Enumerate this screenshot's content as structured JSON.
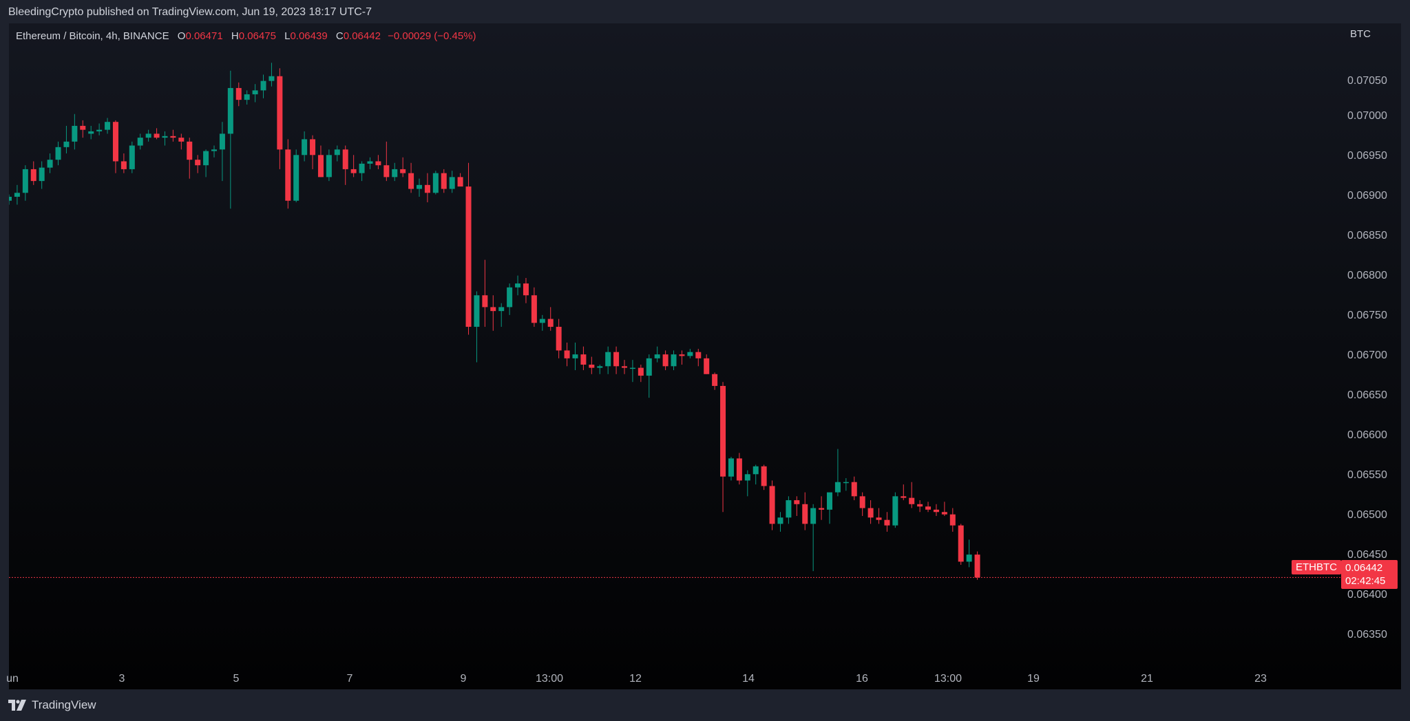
{
  "header": {
    "published": "BleedingCrypto published on TradingView.com, Jun 19, 2023 18:17 UTC-7"
  },
  "legend": {
    "instrument": "Ethereum / Bitcoin, 4h, BINANCE",
    "o_label": "O",
    "o_value": "0.06471",
    "h_label": "H",
    "h_value": "0.06475",
    "l_label": "L",
    "l_value": "0.06439",
    "c_label": "C",
    "c_value": "0.06442",
    "change": "−0.00029 (−0.45%)"
  },
  "axis": {
    "unit": "BTC"
  },
  "price_tag": {
    "symbol": "ETHBTC",
    "price": "0.06442",
    "countdown": "02:42:45"
  },
  "footer": {
    "brand": "TradingView"
  },
  "colors": {
    "up": "#089981",
    "down": "#f23645",
    "background": "#000000",
    "text": "#b2b5be"
  },
  "chart_data": {
    "type": "candlestick",
    "symbol": "ETHBTC",
    "timeframe": "4h",
    "ylim": [
      0.063,
      0.07145
    ],
    "y_ticks": [
      "0.06350",
      "0.06400",
      "0.06450",
      "0.06500",
      "0.06550",
      "0.06600",
      "0.06650",
      "0.06700",
      "0.06750",
      "0.06800",
      "0.06850",
      "0.06900",
      "0.06950",
      "0.07000",
      "0.07050"
    ],
    "x_ticks": [
      "un",
      "3",
      "5",
      "7",
      "9",
      "13:00",
      "12",
      "14",
      "16",
      "13:00",
      "19",
      "21",
      "23"
    ],
    "last_price": 0.06442,
    "ohlc": [
      [
        0.0692,
        0.06928,
        0.06915,
        0.06925
      ],
      [
        0.06925,
        0.0694,
        0.06915,
        0.0693
      ],
      [
        0.0693,
        0.06965,
        0.0692,
        0.0696
      ],
      [
        0.0696,
        0.0697,
        0.0694,
        0.06945
      ],
      [
        0.06945,
        0.0697,
        0.06935,
        0.06962
      ],
      [
        0.06962,
        0.0698,
        0.06955,
        0.06972
      ],
      [
        0.06972,
        0.06995,
        0.06965,
        0.06988
      ],
      [
        0.06988,
        0.07015,
        0.0698,
        0.06995
      ],
      [
        0.06995,
        0.0703,
        0.06985,
        0.07015
      ],
      [
        0.07015,
        0.07022,
        0.07,
        0.0701
      ],
      [
        0.07005,
        0.07015,
        0.06998,
        0.07008
      ],
      [
        0.07008,
        0.07018,
        0.07003,
        0.0701
      ],
      [
        0.0701,
        0.07025,
        0.07005,
        0.0702
      ],
      [
        0.0702,
        0.07022,
        0.06955,
        0.0697
      ],
      [
        0.0697,
        0.0698,
        0.06955,
        0.0696
      ],
      [
        0.0696,
        0.06995,
        0.06955,
        0.0699
      ],
      [
        0.0699,
        0.07005,
        0.06985,
        0.07
      ],
      [
        0.07,
        0.0701,
        0.06995,
        0.07005
      ],
      [
        0.07005,
        0.07012,
        0.06998,
        0.07
      ],
      [
        0.07,
        0.07008,
        0.0699,
        0.07002
      ],
      [
        0.07002,
        0.0701,
        0.06995,
        0.07
      ],
      [
        0.07,
        0.07005,
        0.06985,
        0.06995
      ],
      [
        0.06995,
        0.07,
        0.06948,
        0.06972
      ],
      [
        0.06972,
        0.06978,
        0.06955,
        0.06965
      ],
      [
        0.06965,
        0.06985,
        0.0695,
        0.06983
      ],
      [
        0.06983,
        0.0699,
        0.06975,
        0.06985
      ],
      [
        0.06985,
        0.0702,
        0.06945,
        0.07005
      ],
      [
        0.07005,
        0.07085,
        0.0691,
        0.07063
      ],
      [
        0.07063,
        0.0707,
        0.0704,
        0.07048
      ],
      [
        0.07048,
        0.0706,
        0.07042,
        0.07055
      ],
      [
        0.07055,
        0.07068,
        0.07045,
        0.0706
      ],
      [
        0.0706,
        0.0708,
        0.0705,
        0.07072
      ],
      [
        0.07072,
        0.07095,
        0.07065,
        0.07078
      ],
      [
        0.07078,
        0.07088,
        0.0696,
        0.06985
      ],
      [
        0.06985,
        0.06998,
        0.0691,
        0.0692
      ],
      [
        0.0692,
        0.06985,
        0.06918,
        0.06978
      ],
      [
        0.06978,
        0.07008,
        0.0697,
        0.06998
      ],
      [
        0.06998,
        0.07003,
        0.0696,
        0.06978
      ],
      [
        0.06978,
        0.0699,
        0.0695,
        0.0695
      ],
      [
        0.0695,
        0.06985,
        0.06945,
        0.06978
      ],
      [
        0.06978,
        0.0699,
        0.0697,
        0.06985
      ],
      [
        0.06985,
        0.0699,
        0.0694,
        0.0696
      ],
      [
        0.0696,
        0.06978,
        0.0695,
        0.06955
      ],
      [
        0.06955,
        0.0697,
        0.06945,
        0.06967
      ],
      [
        0.06967,
        0.06975,
        0.0696,
        0.0697
      ],
      [
        0.0697,
        0.06978,
        0.0696,
        0.06965
      ],
      [
        0.06965,
        0.06995,
        0.06945,
        0.0695
      ],
      [
        0.0695,
        0.06968,
        0.06945,
        0.0696
      ],
      [
        0.0696,
        0.06975,
        0.0695,
        0.06955
      ],
      [
        0.06955,
        0.06968,
        0.0693,
        0.06935
      ],
      [
        0.06935,
        0.06948,
        0.06925,
        0.0694
      ],
      [
        0.0694,
        0.06955,
        0.06918,
        0.0693
      ],
      [
        0.0693,
        0.06958,
        0.06928,
        0.06955
      ],
      [
        0.06955,
        0.0696,
        0.0693,
        0.06935
      ],
      [
        0.06935,
        0.06958,
        0.0693,
        0.0695
      ],
      [
        0.0695,
        0.06955,
        0.0694,
        0.06938
      ],
      [
        0.06938,
        0.06968,
        0.0675,
        0.0676
      ],
      [
        0.0676,
        0.06805,
        0.06715,
        0.068
      ],
      [
        0.068,
        0.06845,
        0.0676,
        0.06785
      ],
      [
        0.06785,
        0.068,
        0.06755,
        0.0678
      ],
      [
        0.0678,
        0.0679,
        0.0676,
        0.06785
      ],
      [
        0.06785,
        0.06815,
        0.06775,
        0.0681
      ],
      [
        0.0681,
        0.06825,
        0.068,
        0.06815
      ],
      [
        0.06815,
        0.06822,
        0.0679,
        0.068
      ],
      [
        0.068,
        0.0681,
        0.0676,
        0.06765
      ],
      [
        0.06765,
        0.06775,
        0.06755,
        0.0677
      ],
      [
        0.0677,
        0.06785,
        0.06755,
        0.0676
      ],
      [
        0.0676,
        0.0677,
        0.0672,
        0.0673
      ],
      [
        0.0673,
        0.0674,
        0.0671,
        0.0672
      ],
      [
        0.0672,
        0.0674,
        0.06705,
        0.06725
      ],
      [
        0.06725,
        0.06735,
        0.06705,
        0.06712
      ],
      [
        0.06712,
        0.06722,
        0.067,
        0.06708
      ],
      [
        0.06708,
        0.06712,
        0.067,
        0.0671
      ],
      [
        0.0671,
        0.06735,
        0.067,
        0.06728
      ],
      [
        0.06728,
        0.06735,
        0.067,
        0.0671
      ],
      [
        0.0671,
        0.06718,
        0.067,
        0.06708
      ],
      [
        0.06708,
        0.06718,
        0.0669,
        0.06708
      ],
      [
        0.06708,
        0.06712,
        0.0669,
        0.06698
      ],
      [
        0.06698,
        0.06725,
        0.0667,
        0.0672
      ],
      [
        0.0672,
        0.06735,
        0.06715,
        0.06725
      ],
      [
        0.06725,
        0.0673,
        0.06705,
        0.0671
      ],
      [
        0.0671,
        0.0673,
        0.06705,
        0.06725
      ],
      [
        0.06725,
        0.0673,
        0.06712,
        0.06723
      ],
      [
        0.06723,
        0.06732,
        0.0672,
        0.06728
      ],
      [
        0.06728,
        0.06732,
        0.0671,
        0.0672
      ],
      [
        0.0672,
        0.06725,
        0.067,
        0.067
      ],
      [
        0.067,
        0.06702,
        0.0668,
        0.06685
      ],
      [
        0.06685,
        0.0669,
        0.06525,
        0.0657
      ],
      [
        0.0657,
        0.06595,
        0.06565,
        0.06593
      ],
      [
        0.06593,
        0.066,
        0.0656,
        0.06565
      ],
      [
        0.06565,
        0.06578,
        0.06545,
        0.06573
      ],
      [
        0.06573,
        0.06585,
        0.0656,
        0.06583
      ],
      [
        0.06583,
        0.06585,
        0.06553,
        0.06558
      ],
      [
        0.06558,
        0.06565,
        0.06502,
        0.0651
      ],
      [
        0.0651,
        0.06525,
        0.065,
        0.06518
      ],
      [
        0.06518,
        0.06545,
        0.0651,
        0.0654
      ],
      [
        0.0654,
        0.06545,
        0.0652,
        0.06535
      ],
      [
        0.06535,
        0.0655,
        0.06502,
        0.0651
      ],
      [
        0.0651,
        0.06535,
        0.0645,
        0.0653
      ],
      [
        0.0653,
        0.06545,
        0.06515,
        0.06528
      ],
      [
        0.06528,
        0.06545,
        0.0651,
        0.0655
      ],
      [
        0.0655,
        0.06605,
        0.06545,
        0.06563
      ],
      [
        0.06563,
        0.06568,
        0.06552,
        0.06563
      ],
      [
        0.06563,
        0.0657,
        0.0654,
        0.06545
      ],
      [
        0.06545,
        0.0655,
        0.0652,
        0.0653
      ],
      [
        0.0653,
        0.0654,
        0.0651,
        0.06518
      ],
      [
        0.06518,
        0.0653,
        0.0651,
        0.06515
      ],
      [
        0.06515,
        0.06525,
        0.065,
        0.06508
      ],
      [
        0.06508,
        0.0655,
        0.06505,
        0.06545
      ],
      [
        0.06545,
        0.0656,
        0.0654,
        0.06543
      ],
      [
        0.06543,
        0.06563,
        0.0653,
        0.06535
      ],
      [
        0.06535,
        0.0654,
        0.06525,
        0.06532
      ],
      [
        0.06532,
        0.06538,
        0.06525,
        0.06528
      ],
      [
        0.06528,
        0.06535,
        0.0652,
        0.06525
      ],
      [
        0.06525,
        0.06538,
        0.0652,
        0.06522
      ],
      [
        0.06522,
        0.0653,
        0.065,
        0.06508
      ],
      [
        0.06508,
        0.0651,
        0.06458,
        0.06462
      ],
      [
        0.06462,
        0.0649,
        0.06455,
        0.06471
      ],
      [
        0.06471,
        0.06475,
        0.06439,
        0.06442
      ]
    ]
  }
}
